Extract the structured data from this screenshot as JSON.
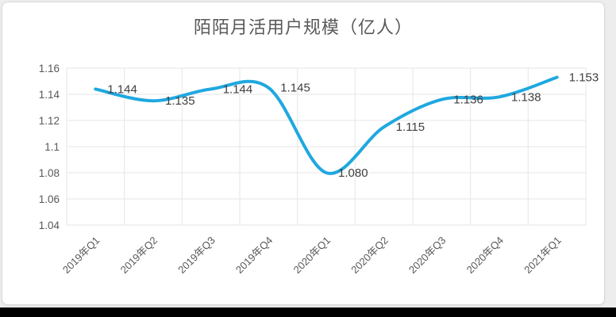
{
  "page": {
    "background_color": "#ededed",
    "card_color": "#ffffff",
    "bottom_bar_color": "#000000"
  },
  "chart_data": {
    "type": "line",
    "title": "陌陌月活用户规模（亿人）",
    "categories": [
      "2019年Q1",
      "2019年Q2",
      "2019年Q3",
      "2019年Q4",
      "2020年Q1",
      "2020年Q2",
      "2020年Q3",
      "2020年Q4",
      "2021年Q1"
    ],
    "values": [
      1.144,
      1.135,
      1.144,
      1.145,
      1.08,
      1.115,
      1.136,
      1.138,
      1.153
    ],
    "data_labels": [
      "1.144",
      "1.135",
      "1.144",
      "1.145",
      "1.080",
      "1.115",
      "1.136",
      "1.138",
      "1.153"
    ],
    "xlabel": "",
    "ylabel": "",
    "ylim": [
      1.04,
      1.16
    ],
    "ytick_labels": [
      "1.16",
      "1.14",
      "1.12",
      "1.1",
      "1.08",
      "1.06",
      "1.04"
    ],
    "ytick_values": [
      1.16,
      1.14,
      1.12,
      1.1,
      1.08,
      1.06,
      1.04
    ],
    "grid": "both",
    "legend_position": "none",
    "smooth": true,
    "line_color": "#1fa8e0",
    "grid_color": "#e6e6e6",
    "axis_label_color": "#595959",
    "data_label_color": "#3f3f3f",
    "title_color": "#595959"
  }
}
